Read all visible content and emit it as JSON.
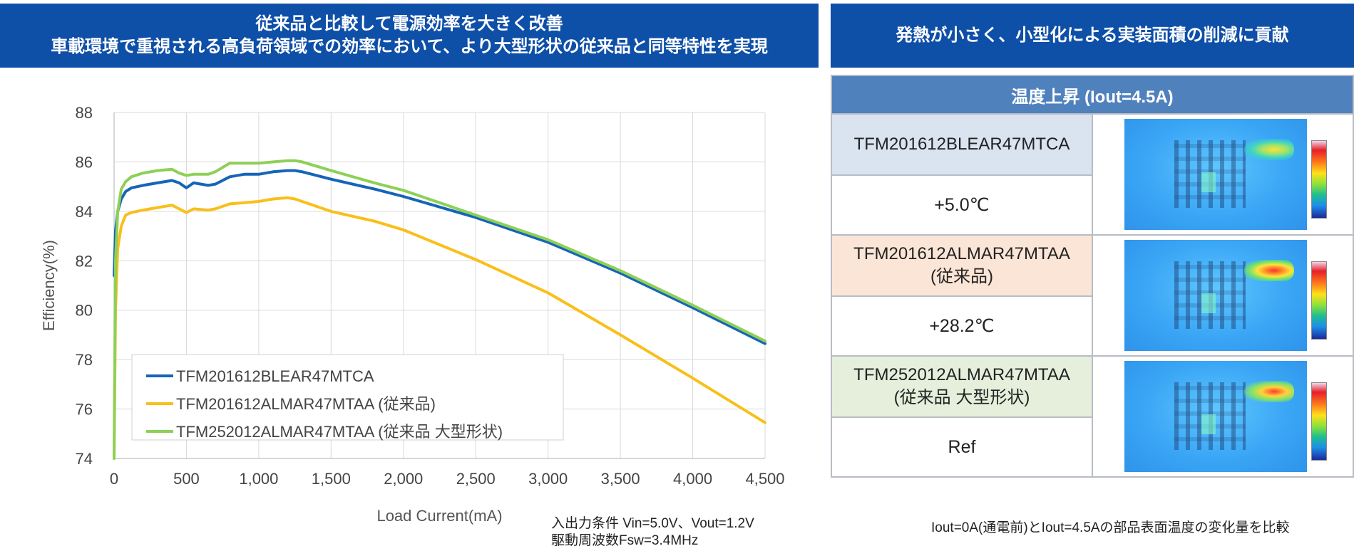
{
  "banners": {
    "left_line1": "従来品と比較して電源効率を大きく改善",
    "left_line2": "車載環境で重視される高負荷領域での効率において、より大型形状の従来品と同等特性を実現",
    "right": "発熱が小さく、小型化による実装面積の削減に貢献"
  },
  "conditions": {
    "line1": "入出力条件  Vin=5.0V、Vout=1.2V",
    "line2": "駆動周波数Fsw=3.4MHz"
  },
  "temp_table": {
    "header": "温度上昇 (Iout=4.5A)",
    "rows": [
      {
        "model": "TFM201612BLEAR47MTCA",
        "note": "",
        "value": "+5.0℃"
      },
      {
        "model": "TFM201612ALMAR47MTAA",
        "note": "(従来品)",
        "value": "+28.2℃"
      },
      {
        "model": "TFM252012ALMAR47MTAA",
        "note": "(従来品 大型形状)",
        "value": "Ref"
      }
    ],
    "footnote": "Iout=0A(通電前)とIout=4.5Aの部品表面温度の変化量を比較"
  },
  "colors": {
    "banner": "#0e4fa8",
    "table_header": "#4f81bd",
    "series_blue": "#1565b8",
    "series_yellow": "#f9bf1a",
    "series_green": "#8ed057"
  },
  "chart_data": {
    "type": "line",
    "title": "",
    "xlabel": "Load Current(mA)",
    "ylabel": "Efficiency(%)",
    "xlim": [
      0,
      4500
    ],
    "ylim": [
      74,
      88
    ],
    "xticks": [
      0,
      500,
      1000,
      1500,
      2000,
      2500,
      3000,
      3500,
      4000,
      4500
    ],
    "xtick_labels": [
      "0",
      "500",
      "1,000",
      "1,500",
      "2,000",
      "2,500",
      "3,000",
      "3,500",
      "4,000",
      "4,500"
    ],
    "yticks": [
      74,
      76,
      78,
      80,
      82,
      84,
      86,
      88
    ],
    "ytick_labels": [
      "74",
      "76",
      "78",
      "80",
      "82",
      "84",
      "86",
      "88"
    ],
    "grid": true,
    "legend": "bottom-left",
    "series": [
      {
        "name": "TFM201612BLEAR47MTCA",
        "color": "#1565b8",
        "x": [
          0,
          10,
          25,
          50,
          80,
          120,
          200,
          300,
          400,
          450,
          500,
          550,
          650,
          700,
          800,
          900,
          1000,
          1100,
          1200,
          1250,
          1300,
          1500,
          1800,
          2000,
          2500,
          3000,
          3500,
          4000,
          4500
        ],
        "y": [
          81.4,
          83.2,
          84.0,
          84.5,
          84.8,
          84.95,
          85.05,
          85.15,
          85.25,
          85.15,
          84.95,
          85.15,
          85.05,
          85.1,
          85.4,
          85.5,
          85.5,
          85.6,
          85.65,
          85.65,
          85.6,
          85.3,
          84.9,
          84.6,
          83.75,
          82.75,
          81.5,
          80.1,
          78.65
        ]
      },
      {
        "name": "TFM201612ALMAR47MTAA (従来品)",
        "color": "#f9bf1a",
        "x": [
          0,
          10,
          25,
          50,
          80,
          120,
          200,
          300,
          400,
          450,
          500,
          550,
          650,
          700,
          800,
          900,
          1000,
          1100,
          1200,
          1250,
          1300,
          1500,
          1800,
          2000,
          2500,
          3000,
          3500,
          4000,
          4500
        ],
        "y": [
          74.0,
          80.0,
          82.5,
          83.4,
          83.85,
          83.95,
          84.05,
          84.15,
          84.25,
          84.1,
          83.95,
          84.1,
          84.05,
          84.1,
          84.3,
          84.35,
          84.4,
          84.5,
          84.55,
          84.5,
          84.4,
          84.0,
          83.6,
          83.25,
          82.05,
          80.7,
          79.0,
          77.25,
          75.45
        ]
      },
      {
        "name": "TFM252012ALMAR47MTAA (従来品 大型形状)",
        "color": "#8ed057",
        "x": [
          0,
          10,
          25,
          50,
          80,
          120,
          200,
          300,
          400,
          450,
          500,
          550,
          650,
          700,
          800,
          900,
          1000,
          1100,
          1200,
          1250,
          1300,
          1500,
          1800,
          2000,
          2500,
          3000,
          3500,
          4000,
          4500
        ],
        "y": [
          74.0,
          82.0,
          84.0,
          84.9,
          85.2,
          85.4,
          85.55,
          85.65,
          85.7,
          85.55,
          85.45,
          85.5,
          85.5,
          85.6,
          85.95,
          85.95,
          85.95,
          86.0,
          86.05,
          86.05,
          86.0,
          85.65,
          85.15,
          84.85,
          83.85,
          82.85,
          81.6,
          80.2,
          78.75
        ]
      }
    ]
  }
}
